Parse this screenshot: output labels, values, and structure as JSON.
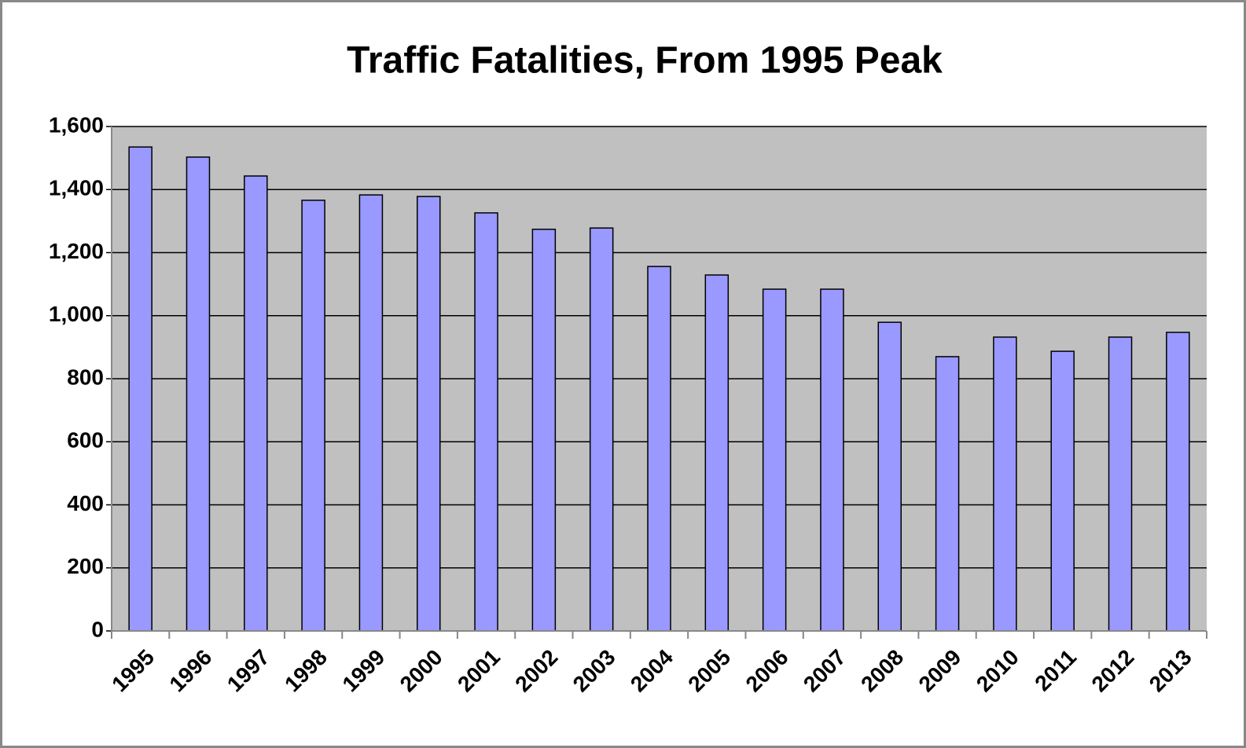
{
  "chart_data": {
    "type": "bar",
    "title": "Traffic Fatalities, From 1995 Peak",
    "categories": [
      "1995",
      "1996",
      "1997",
      "1998",
      "1999",
      "2000",
      "2001",
      "2002",
      "2003",
      "2004",
      "2005",
      "2006",
      "2007",
      "2008",
      "2009",
      "2010",
      "2011",
      "2012",
      "2013"
    ],
    "values": [
      1535,
      1503,
      1443,
      1366,
      1383,
      1378,
      1326,
      1274,
      1278,
      1156,
      1129,
      1084,
      1084,
      979,
      870,
      932,
      887,
      932,
      947
    ],
    "color": "#9999ff",
    "ylim": [
      0,
      1600
    ],
    "yticks": [
      0,
      200,
      400,
      600,
      800,
      {
        "value": 1000,
        "label": "1,000"
      },
      {
        "value": 1200,
        "label": "1,200"
      },
      {
        "value": 1400,
        "label": "1,400"
      },
      {
        "value": 1600,
        "label": "1,600"
      }
    ],
    "grid": true
  }
}
